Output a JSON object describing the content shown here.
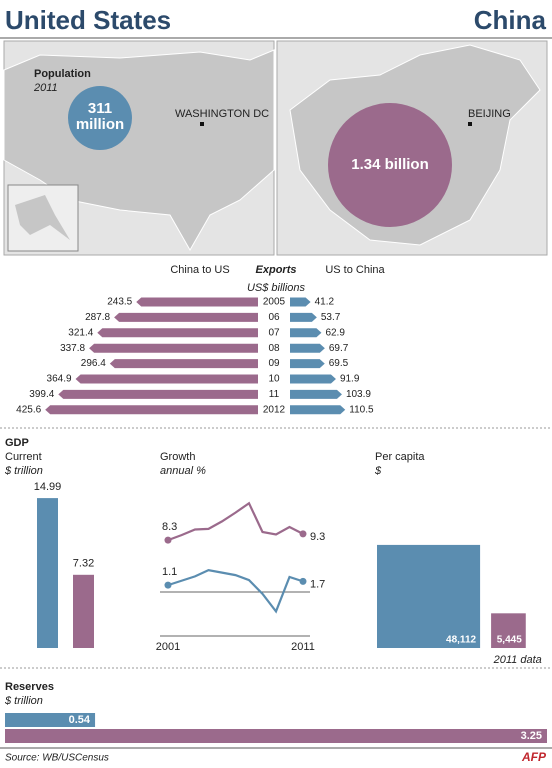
{
  "header": {
    "left": "United States",
    "right": "China"
  },
  "population": {
    "title": "Population",
    "year": "2011",
    "us": {
      "value": "311",
      "unit": "million",
      "capital": "WASHINGTON DC"
    },
    "china": {
      "value": "1.34 billion",
      "capital": "BEIJING"
    }
  },
  "chart_data": [
    {
      "type": "butterfly",
      "title": "Exports",
      "subtitle": "US$ billions",
      "categories": [
        "2005",
        "06",
        "07",
        "08",
        "09",
        "10",
        "11",
        "2012"
      ],
      "series": [
        {
          "name": "China to US",
          "color": "#9b6a8c",
          "values": [
            243.5,
            287.8,
            321.4,
            337.8,
            296.4,
            364.9,
            399.4,
            425.6
          ]
        },
        {
          "name": "US to China",
          "color": "#5b8db0",
          "values": [
            41.2,
            53.7,
            62.9,
            69.7,
            69.5,
            91.9,
            103.9,
            110.5
          ]
        }
      ]
    },
    {
      "type": "bar",
      "heading": "GDP",
      "title": "Current",
      "subtitle": "$ trillion",
      "values": [
        14.99,
        7.32
      ],
      "colors": [
        "#5b8db0",
        "#9b6a8c"
      ]
    },
    {
      "type": "line",
      "title": "Growth",
      "subtitle": "annual %",
      "x": [
        2001,
        2002,
        2003,
        2004,
        2005,
        2006,
        2007,
        2008,
        2009,
        2010,
        2011
      ],
      "xlim": [
        2001,
        2011
      ],
      "xticks": [
        2001,
        2011
      ],
      "ylim": [
        -4,
        16
      ],
      "series": [
        {
          "name": "China",
          "color": "#9b6a8c",
          "values": [
            8.3,
            9.1,
            10.0,
            10.1,
            11.3,
            12.7,
            14.2,
            9.6,
            9.2,
            10.4,
            9.3
          ]
        },
        {
          "name": "US",
          "color": "#5b8db0",
          "values": [
            1.1,
            1.8,
            2.5,
            3.5,
            3.1,
            2.7,
            1.9,
            -0.3,
            -3.1,
            2.4,
            1.7
          ]
        }
      ]
    },
    {
      "type": "square",
      "title": "Per capita",
      "subtitle": "$",
      "note": "2011 data",
      "values": [
        48112,
        5445
      ],
      "value_labels": [
        "48,112",
        "5,445"
      ],
      "colors": [
        "#5b8db0",
        "#9b6a8c"
      ]
    },
    {
      "type": "bar",
      "orientation": "horizontal",
      "title": "Reserves",
      "subtitle": "$ trillion",
      "values": [
        0.54,
        3.25
      ],
      "colors": [
        "#5b8db0",
        "#9b6a8c"
      ]
    }
  ],
  "footer": {
    "source": "Source: WB/USCensus",
    "logo": "AFP"
  }
}
